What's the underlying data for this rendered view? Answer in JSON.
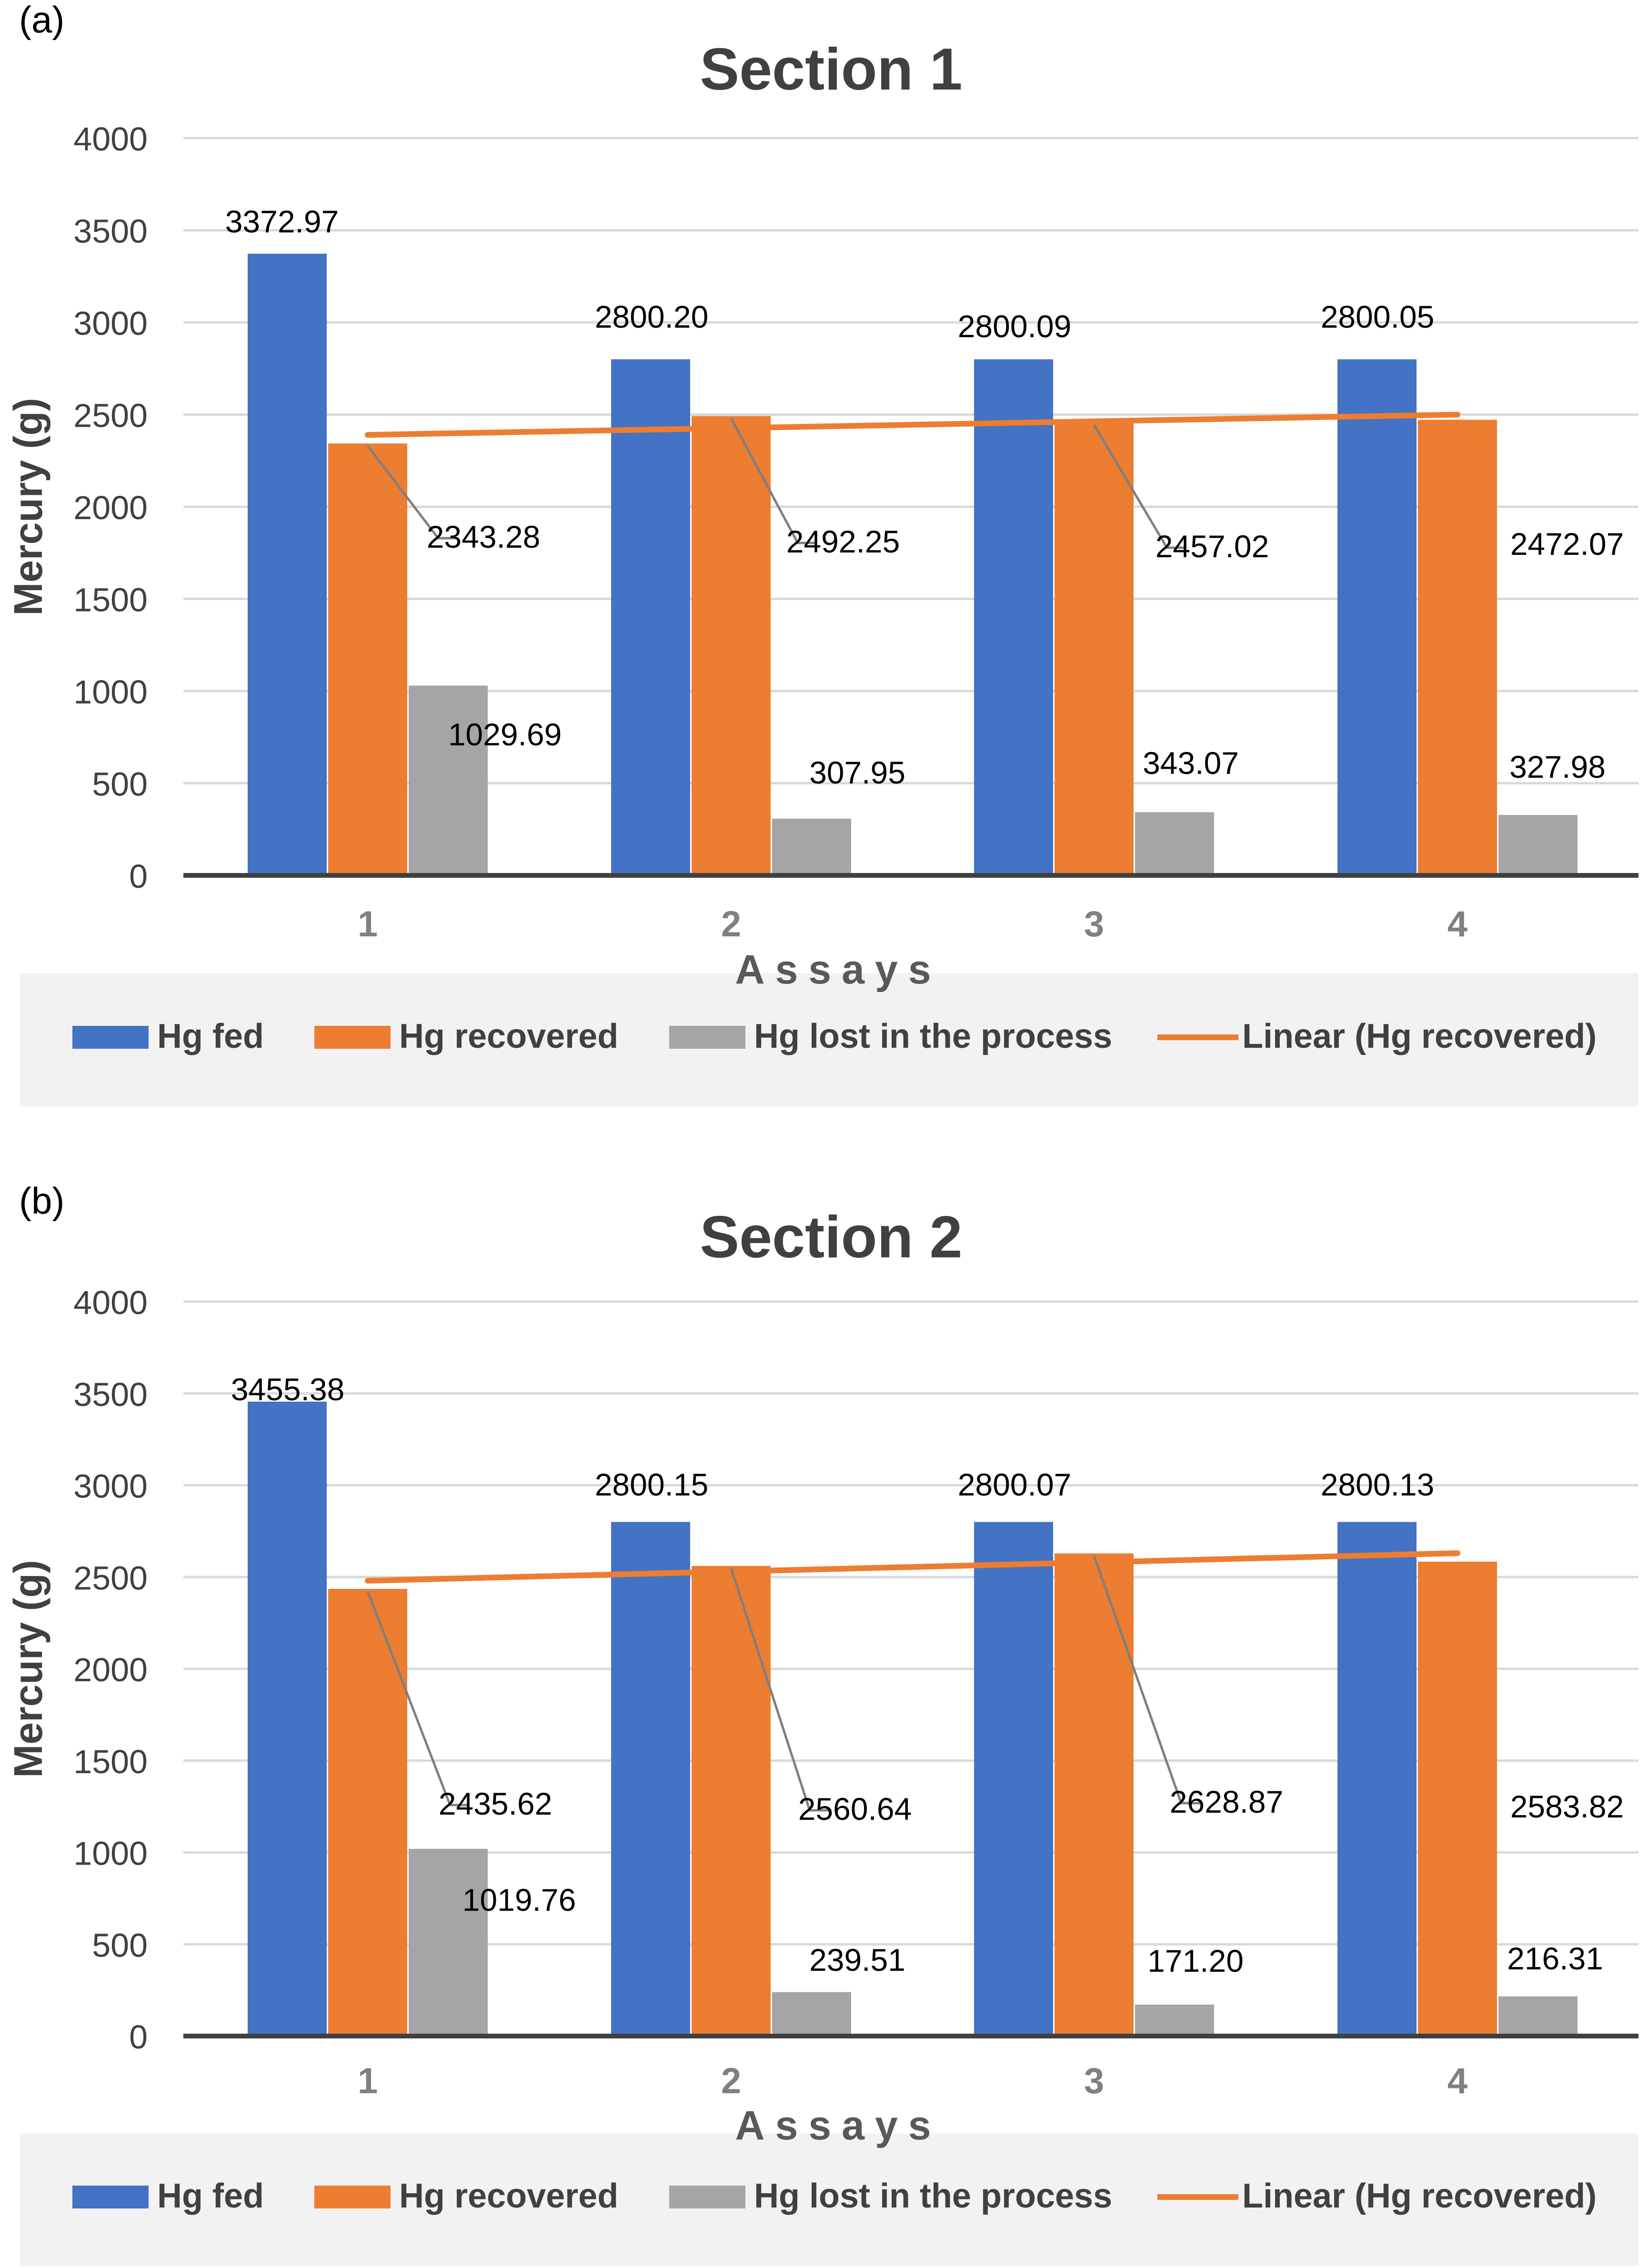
{
  "colors": {
    "fed": "#4472C4",
    "recovered": "#ED7D31",
    "lost": "#A5A5A5",
    "trend": "#ED7D31",
    "grid": "#D9D9D9",
    "axis": "#000000",
    "text": "#404040",
    "legend_bg": "#F2F2F2"
  },
  "chart_data": [
    {
      "panel_label": "(a)",
      "type": "bar",
      "title": "Section 1",
      "xlabel": "Assays",
      "ylabel": "Mercury (g)",
      "ylim": [
        0,
        4000
      ],
      "yticks": [
        "0",
        "500",
        "1000",
        "1500",
        "2000",
        "2500",
        "3000",
        "3500",
        "4000"
      ],
      "categories": [
        "1",
        "2",
        "3",
        "4"
      ],
      "series": [
        {
          "name": "Hg fed",
          "values": [
            3372.97,
            2800.2,
            2800.09,
            2800.05
          ],
          "labels": [
            "3372.97",
            "2800.20",
            "2800.09",
            "2800.05"
          ]
        },
        {
          "name": "Hg recovered",
          "values": [
            2343.28,
            2492.25,
            2457.02,
            2472.07
          ],
          "labels": [
            "2343.28",
            "2492.25",
            "2457.02",
            "2472.07"
          ]
        },
        {
          "name": "Hg lost in the process",
          "values": [
            1029.69,
            307.95,
            343.07,
            327.98
          ],
          "labels": [
            "1029.69",
            "307.95",
            "343.07",
            "327.98"
          ]
        }
      ],
      "trendline": {
        "name": "Linear (Hg recovered)",
        "start": 2390,
        "end": 2500
      },
      "legend": [
        "Hg fed",
        "Hg recovered",
        "Hg lost in the process",
        "Linear (Hg recovered)"
      ]
    },
    {
      "panel_label": "(b)",
      "type": "bar",
      "title": "Section 2",
      "xlabel": "Assays",
      "ylabel": "Mercury (g)",
      "ylim": [
        0,
        4000
      ],
      "yticks": [
        "0",
        "500",
        "1000",
        "1500",
        "2000",
        "2500",
        "3000",
        "3500",
        "4000"
      ],
      "categories": [
        "1",
        "2",
        "3",
        "4"
      ],
      "series": [
        {
          "name": "Hg fed",
          "values": [
            3455.38,
            2800.15,
            2800.07,
            2800.13
          ],
          "labels": [
            "3455.38",
            "2800.15",
            "2800.07",
            "2800.13"
          ]
        },
        {
          "name": "Hg recovered",
          "values": [
            2435.62,
            2560.64,
            2628.87,
            2583.82
          ],
          "labels": [
            "2435.62",
            "2560.64",
            "2628.87",
            "2583.82"
          ]
        },
        {
          "name": "Hg lost in the process",
          "values": [
            1019.76,
            239.51,
            171.2,
            216.31
          ],
          "labels": [
            "1019.76",
            "239.51",
            "171.20",
            "216.31"
          ]
        }
      ],
      "trendline": {
        "name": "Linear (Hg recovered)",
        "start": 2480,
        "end": 2630
      },
      "legend": [
        "Hg fed",
        "Hg recovered",
        "Hg lost in the process",
        "Linear (Hg recovered)"
      ]
    }
  ]
}
